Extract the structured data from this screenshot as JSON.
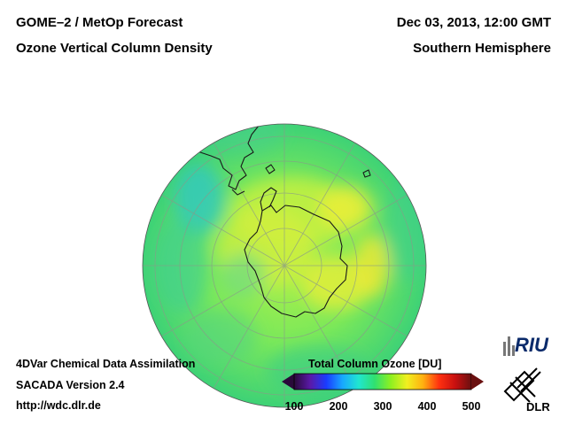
{
  "header": {
    "title_line1": "GOME–2 / MetOp Forecast",
    "title_line2": "Ozone Vertical Column Density",
    "date": "Dec 03, 2013, 12:00 GMT",
    "region": "Southern Hemisphere"
  },
  "footer": {
    "line1": "4DVar Chemical Data Assimilation",
    "line2": "SACADA Version 2.4",
    "line3": "http://wdc.dlr.de"
  },
  "legend": {
    "title": "Total Column Ozone [DU]",
    "min": 100,
    "max": 500,
    "ticks": [
      "100",
      "200",
      "300",
      "400",
      "500"
    ],
    "colors": [
      "#2a0a3a",
      "#5a1aa8",
      "#1a3cff",
      "#18a8ff",
      "#20e6d0",
      "#30e070",
      "#8ef020",
      "#f0f020",
      "#ffb010",
      "#ff3010",
      "#c81010",
      "#6a1010"
    ]
  },
  "map": {
    "projection": "orthographic, south pole centered",
    "colors": {
      "ocean_base": "#5ede62",
      "antarctic_vortex": "#e6f03a",
      "low_ozone": "#38d0b0",
      "outline": "#1a1a1a"
    }
  },
  "logos": {
    "riu": "RIU",
    "dlr": "DLR"
  }
}
